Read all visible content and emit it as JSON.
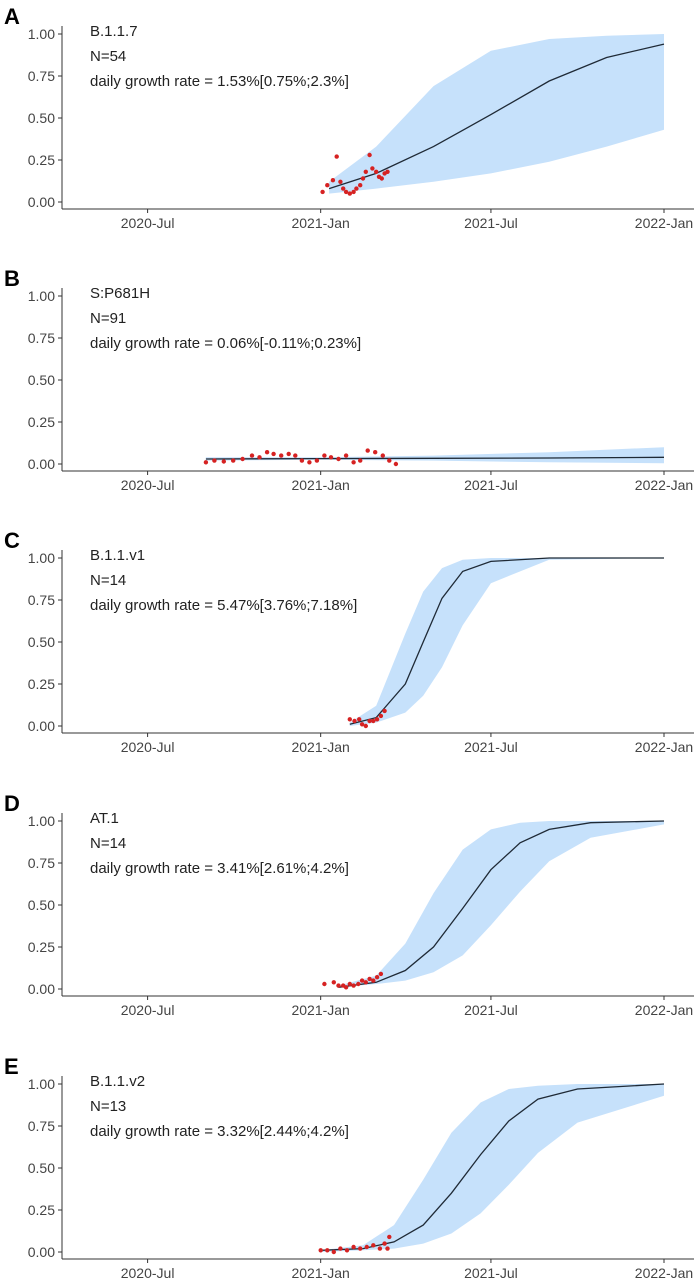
{
  "chart_data": [
    {
      "panel": "A",
      "type": "line",
      "annotations": [
        "B.1.1.7",
        "N=54",
        "daily growth rate = 1.53%[0.75%;2.3%]"
      ],
      "xlim": [
        "2020-04-01",
        "2022-01-01"
      ],
      "ylim": [
        0,
        1
      ],
      "xticks": [
        {
          "date": "2020-07-01",
          "label": "2020-Jul"
        },
        {
          "date": "2021-01-01",
          "label": "2021-Jan"
        },
        {
          "date": "2021-07-01",
          "label": "2021-Jul"
        },
        {
          "date": "2022-01-01",
          "label": "2022-Jan"
        }
      ],
      "yticks": [
        "0.00",
        "0.25",
        "0.50",
        "0.75",
        "1.00"
      ],
      "fit": {
        "x": [
          "2021-01-10",
          "2021-03-01",
          "2021-05-01",
          "2021-07-01",
          "2021-09-01",
          "2021-11-01",
          "2022-01-01"
        ],
        "y": [
          0.08,
          0.17,
          0.33,
          0.52,
          0.72,
          0.86,
          0.94
        ]
      },
      "ci_lower": [
        0.05,
        0.08,
        0.12,
        0.17,
        0.24,
        0.33,
        0.43
      ],
      "ci_upper": [
        0.12,
        0.33,
        0.69,
        0.9,
        0.97,
        0.99,
        1.0
      ],
      "points": {
        "x": [
          "2021-01-03",
          "2021-01-08",
          "2021-01-14",
          "2021-01-18",
          "2021-01-22",
          "2021-01-25",
          "2021-01-28",
          "2021-02-01",
          "2021-02-05",
          "2021-02-08",
          "2021-02-12",
          "2021-02-15",
          "2021-02-18",
          "2021-02-22",
          "2021-02-25",
          "2021-03-01",
          "2021-03-04",
          "2021-03-07",
          "2021-03-10",
          "2021-03-13"
        ],
        "y": [
          0.06,
          0.1,
          0.13,
          0.27,
          0.12,
          0.08,
          0.06,
          0.05,
          0.06,
          0.08,
          0.1,
          0.14,
          0.18,
          0.28,
          0.2,
          0.18,
          0.15,
          0.14,
          0.17,
          0.18
        ]
      }
    },
    {
      "panel": "B",
      "type": "line",
      "annotations": [
        "S:P681H",
        "N=91",
        "daily growth rate = 0.06%[-0.11%;0.23%]"
      ],
      "xlim": [
        "2020-04-01",
        "2022-01-01"
      ],
      "ylim": [
        0,
        1
      ],
      "xticks": [
        {
          "date": "2020-07-01",
          "label": "2020-Jul"
        },
        {
          "date": "2021-01-01",
          "label": "2021-Jan"
        },
        {
          "date": "2021-07-01",
          "label": "2021-Jul"
        },
        {
          "date": "2022-01-01",
          "label": "2022-Jan"
        }
      ],
      "yticks": [
        "0.00",
        "0.25",
        "0.50",
        "0.75",
        "1.00"
      ],
      "fit": {
        "x": [
          "2020-09-01",
          "2021-01-01",
          "2021-05-01",
          "2021-09-01",
          "2022-01-01"
        ],
        "y": [
          0.03,
          0.032,
          0.034,
          0.036,
          0.04
        ]
      },
      "ci_lower": [
        0.02,
        0.025,
        0.02,
        0.01,
        0.005
      ],
      "ci_upper": [
        0.04,
        0.04,
        0.05,
        0.07,
        0.1
      ],
      "points": {
        "x": [
          "2020-09-01",
          "2020-09-10",
          "2020-09-20",
          "2020-09-30",
          "2020-10-10",
          "2020-10-20",
          "2020-10-28",
          "2020-11-05",
          "2020-11-12",
          "2020-11-20",
          "2020-11-28",
          "2020-12-05",
          "2020-12-12",
          "2020-12-20",
          "2020-12-28",
          "2021-01-05",
          "2021-01-12",
          "2021-01-20",
          "2021-01-28",
          "2021-02-05",
          "2021-02-12",
          "2021-02-20",
          "2021-02-28",
          "2021-03-08",
          "2021-03-15",
          "2021-03-22"
        ],
        "y": [
          0.01,
          0.02,
          0.015,
          0.02,
          0.03,
          0.05,
          0.04,
          0.07,
          0.06,
          0.05,
          0.06,
          0.05,
          0.02,
          0.01,
          0.02,
          0.05,
          0.04,
          0.03,
          0.05,
          0.01,
          0.02,
          0.08,
          0.07,
          0.05,
          0.02,
          0.0
        ]
      }
    },
    {
      "panel": "C",
      "type": "line",
      "annotations": [
        "B.1.1.v1",
        "N=14",
        "daily growth rate = 5.47%[3.76%;7.18%]"
      ],
      "xlim": [
        "2020-04-01",
        "2022-01-01"
      ],
      "ylim": [
        0,
        1
      ],
      "xticks": [
        {
          "date": "2020-07-01",
          "label": "2020-Jul"
        },
        {
          "date": "2021-01-01",
          "label": "2021-Jan"
        },
        {
          "date": "2021-07-01",
          "label": "2021-Jul"
        },
        {
          "date": "2022-01-01",
          "label": "2022-Jan"
        }
      ],
      "yticks": [
        "0.00",
        "0.25",
        "0.50",
        "0.75",
        "1.00"
      ],
      "fit": {
        "x": [
          "2021-02-01",
          "2021-03-01",
          "2021-04-01",
          "2021-04-20",
          "2021-05-10",
          "2021-06-01",
          "2021-07-01",
          "2021-09-01",
          "2022-01-01"
        ],
        "y": [
          0.01,
          0.05,
          0.25,
          0.5,
          0.76,
          0.92,
          0.98,
          1.0,
          1.0
        ]
      },
      "ci_lower": [
        0.0,
        0.02,
        0.08,
        0.18,
        0.35,
        0.6,
        0.85,
        0.99,
        1.0
      ],
      "ci_upper": [
        0.02,
        0.12,
        0.55,
        0.8,
        0.94,
        0.99,
        1.0,
        1.0,
        1.0
      ],
      "points": {
        "x": [
          "2021-02-01",
          "2021-02-06",
          "2021-02-11",
          "2021-02-14",
          "2021-02-18",
          "2021-02-22",
          "2021-02-26",
          "2021-03-02",
          "2021-03-06",
          "2021-03-10"
        ],
        "y": [
          0.04,
          0.03,
          0.04,
          0.01,
          0.0,
          0.03,
          0.03,
          0.04,
          0.06,
          0.09
        ]
      }
    },
    {
      "panel": "D",
      "type": "line",
      "annotations": [
        "AT.1",
        "N=14",
        "daily growth rate = 3.41%[2.61%;4.2%]"
      ],
      "xlim": [
        "2020-04-01",
        "2022-01-01"
      ],
      "ylim": [
        0,
        1
      ],
      "xticks": [
        {
          "date": "2020-07-01",
          "label": "2020-Jul"
        },
        {
          "date": "2021-01-01",
          "label": "2021-Jan"
        },
        {
          "date": "2021-07-01",
          "label": "2021-Jul"
        },
        {
          "date": "2022-01-01",
          "label": "2022-Jan"
        }
      ],
      "yticks": [
        "0.00",
        "0.25",
        "0.50",
        "0.75",
        "1.00"
      ],
      "fit": {
        "x": [
          "2021-01-20",
          "2021-03-01",
          "2021-04-01",
          "2021-05-01",
          "2021-06-01",
          "2021-07-01",
          "2021-08-01",
          "2021-09-01",
          "2021-10-15",
          "2022-01-01"
        ],
        "y": [
          0.01,
          0.04,
          0.11,
          0.25,
          0.48,
          0.71,
          0.87,
          0.95,
          0.99,
          1.0
        ]
      },
      "ci_lower": [
        0.01,
        0.03,
        0.05,
        0.1,
        0.2,
        0.38,
        0.58,
        0.76,
        0.9,
        0.98
      ],
      "ci_upper": [
        0.02,
        0.08,
        0.27,
        0.57,
        0.83,
        0.95,
        0.99,
        1.0,
        1.0,
        1.0
      ],
      "points": {
        "x": [
          "2021-01-05",
          "2021-01-15",
          "2021-01-20",
          "2021-01-25",
          "2021-01-28",
          "2021-02-01",
          "2021-02-05",
          "2021-02-10",
          "2021-02-14",
          "2021-02-18",
          "2021-02-22",
          "2021-02-26",
          "2021-03-02",
          "2021-03-06"
        ],
        "y": [
          0.03,
          0.04,
          0.02,
          0.02,
          0.01,
          0.03,
          0.02,
          0.03,
          0.05,
          0.04,
          0.06,
          0.05,
          0.07,
          0.09
        ]
      }
    },
    {
      "panel": "E",
      "type": "line",
      "annotations": [
        "B.1.1.v2",
        "N=13",
        "daily growth rate = 3.32%[2.44%;4.2%]"
      ],
      "xlim": [
        "2020-04-01",
        "2022-01-01"
      ],
      "ylim": [
        0,
        1
      ],
      "xticks": [
        {
          "date": "2020-07-01",
          "label": "2020-Jul"
        },
        {
          "date": "2021-01-01",
          "label": "2021-Jan"
        },
        {
          "date": "2021-07-01",
          "label": "2021-Jul"
        },
        {
          "date": "2022-01-01",
          "label": "2022-Jan"
        }
      ],
      "yticks": [
        "0.00",
        "0.25",
        "0.50",
        "0.75",
        "1.00"
      ],
      "fit": {
        "x": [
          "2021-01-01",
          "2021-02-15",
          "2021-03-20",
          "2021-04-20",
          "2021-05-20",
          "2021-06-20",
          "2021-07-20",
          "2021-08-20",
          "2021-10-01",
          "2022-01-01"
        ],
        "y": [
          0.01,
          0.02,
          0.06,
          0.16,
          0.35,
          0.58,
          0.78,
          0.91,
          0.97,
          1.0
        ]
      },
      "ci_lower": [
        0.0,
        0.01,
        0.02,
        0.05,
        0.11,
        0.23,
        0.4,
        0.59,
        0.77,
        0.93
      ],
      "ci_upper": [
        0.01,
        0.04,
        0.16,
        0.43,
        0.71,
        0.89,
        0.97,
        0.99,
        1.0,
        1.0
      ],
      "points": {
        "x": [
          "2021-01-01",
          "2021-01-08",
          "2021-01-15",
          "2021-01-22",
          "2021-01-29",
          "2021-02-05",
          "2021-02-12",
          "2021-02-19",
          "2021-02-26",
          "2021-03-05",
          "2021-03-10",
          "2021-03-13",
          "2021-03-15"
        ],
        "y": [
          0.01,
          0.01,
          0.0,
          0.02,
          0.01,
          0.03,
          0.02,
          0.03,
          0.04,
          0.02,
          0.05,
          0.02,
          0.09
        ]
      }
    }
  ],
  "colors": {
    "ribbon": "#c6e1fb",
    "fit_line": "#1f2a36",
    "points": "#d62222",
    "axis": "#333333",
    "text": "#222222"
  }
}
